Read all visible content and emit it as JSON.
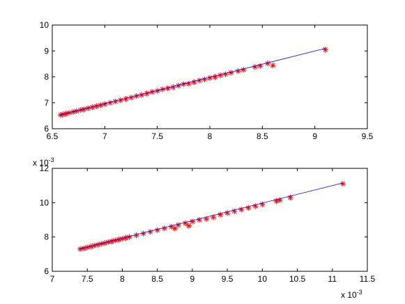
{
  "colors": {
    "line": "#0000ff",
    "marker": "#ff0000",
    "axis": "#000000",
    "background": "#ffffff"
  },
  "chart_data": [
    {
      "type": "scatter",
      "title": "",
      "xlabel": "",
      "ylabel": "",
      "xlim": [
        6.5,
        9.5
      ],
      "ylim": [
        6,
        10
      ],
      "xticks": [
        "6.5",
        "7",
        "7.5",
        "8",
        "8.5",
        "9",
        "9.5"
      ],
      "yticks": [
        "6",
        "7",
        "8",
        "9",
        "10"
      ],
      "x_multiplier": "",
      "y_multiplier": "",
      "grid": false,
      "legend": "none",
      "fit_line": {
        "x": [
          6.56,
          9.1
        ],
        "y": [
          6.52,
          9.1
        ]
      },
      "series": [
        {
          "marker": "asterisk",
          "points": [
            [
              6.58,
              6.53
            ],
            [
              6.6,
              6.55
            ],
            [
              6.63,
              6.58
            ],
            [
              6.66,
              6.61
            ],
            [
              6.7,
              6.65
            ],
            [
              6.73,
              6.68
            ],
            [
              6.77,
              6.72
            ],
            [
              6.8,
              6.75
            ],
            [
              6.84,
              6.79
            ],
            [
              6.88,
              6.83
            ],
            [
              6.92,
              6.87
            ],
            [
              6.96,
              6.91
            ],
            [
              7.0,
              6.95
            ],
            [
              7.05,
              7.0
            ],
            [
              7.1,
              7.05
            ],
            [
              7.15,
              7.1
            ],
            [
              7.2,
              7.15
            ],
            [
              7.25,
              7.2
            ],
            [
              7.3,
              7.26
            ],
            [
              7.35,
              7.3
            ],
            [
              7.4,
              7.36
            ],
            [
              7.45,
              7.42
            ],
            [
              7.5,
              7.46
            ],
            [
              7.55,
              7.52
            ],
            [
              7.6,
              7.56
            ],
            [
              7.65,
              7.6
            ],
            [
              7.7,
              7.66
            ],
            [
              7.75,
              7.72
            ],
            [
              7.8,
              7.74
            ],
            [
              7.85,
              7.8
            ],
            [
              7.9,
              7.86
            ],
            [
              7.95,
              7.9
            ],
            [
              8.0,
              7.96
            ],
            [
              8.05,
              8.0
            ],
            [
              8.1,
              8.06
            ],
            [
              8.15,
              8.1
            ],
            [
              8.2,
              8.16
            ],
            [
              8.27,
              8.22
            ],
            [
              8.32,
              8.27
            ],
            [
              8.43,
              8.38
            ],
            [
              8.48,
              8.42
            ],
            [
              8.55,
              8.52
            ],
            [
              8.6,
              8.44
            ],
            [
              9.1,
              9.05
            ]
          ]
        }
      ]
    },
    {
      "type": "scatter",
      "title": "",
      "xlabel": "",
      "ylabel": "",
      "xlim": [
        7,
        11.5
      ],
      "ylim": [
        6,
        12
      ],
      "xticks": [
        "7",
        "7.5",
        "8",
        "8.5",
        "9",
        "9.5",
        "10",
        "10.5",
        "11",
        "11.5"
      ],
      "yticks": [
        "6",
        "8",
        "10",
        "12"
      ],
      "x_multiplier": "x 10",
      "x_multiplier_exp": "-3",
      "y_multiplier": "x 10",
      "y_multiplier_exp": "-3",
      "grid": false,
      "legend": "none",
      "fit_line": {
        "x": [
          7.38,
          11.15
        ],
        "y": [
          7.3,
          11.15
        ]
      },
      "series": [
        {
          "marker": "asterisk",
          "points": [
            [
              7.4,
              7.3
            ],
            [
              7.45,
              7.34
            ],
            [
              7.5,
              7.39
            ],
            [
              7.55,
              7.44
            ],
            [
              7.6,
              7.5
            ],
            [
              7.65,
              7.55
            ],
            [
              7.7,
              7.6
            ],
            [
              7.75,
              7.65
            ],
            [
              7.8,
              7.7
            ],
            [
              7.85,
              7.75
            ],
            [
              7.9,
              7.8
            ],
            [
              7.95,
              7.85
            ],
            [
              8.0,
              7.9
            ],
            [
              8.05,
              7.95
            ],
            [
              8.1,
              8.0
            ],
            [
              8.2,
              8.1
            ],
            [
              8.3,
              8.2
            ],
            [
              8.4,
              8.3
            ],
            [
              8.5,
              8.4
            ],
            [
              8.6,
              8.5
            ],
            [
              8.7,
              8.6
            ],
            [
              8.75,
              8.5
            ],
            [
              8.8,
              8.7
            ],
            [
              8.9,
              8.8
            ],
            [
              8.95,
              8.65
            ],
            [
              9.0,
              8.9
            ],
            [
              9.1,
              9.0
            ],
            [
              9.2,
              9.05
            ],
            [
              9.3,
              9.15
            ],
            [
              9.4,
              9.3
            ],
            [
              9.5,
              9.4
            ],
            [
              9.6,
              9.5
            ],
            [
              9.7,
              9.6
            ],
            [
              9.8,
              9.7
            ],
            [
              9.9,
              9.8
            ],
            [
              10.0,
              9.9
            ],
            [
              10.2,
              10.1
            ],
            [
              10.25,
              10.15
            ],
            [
              10.4,
              10.3
            ],
            [
              11.15,
              11.1
            ]
          ]
        }
      ]
    }
  ]
}
